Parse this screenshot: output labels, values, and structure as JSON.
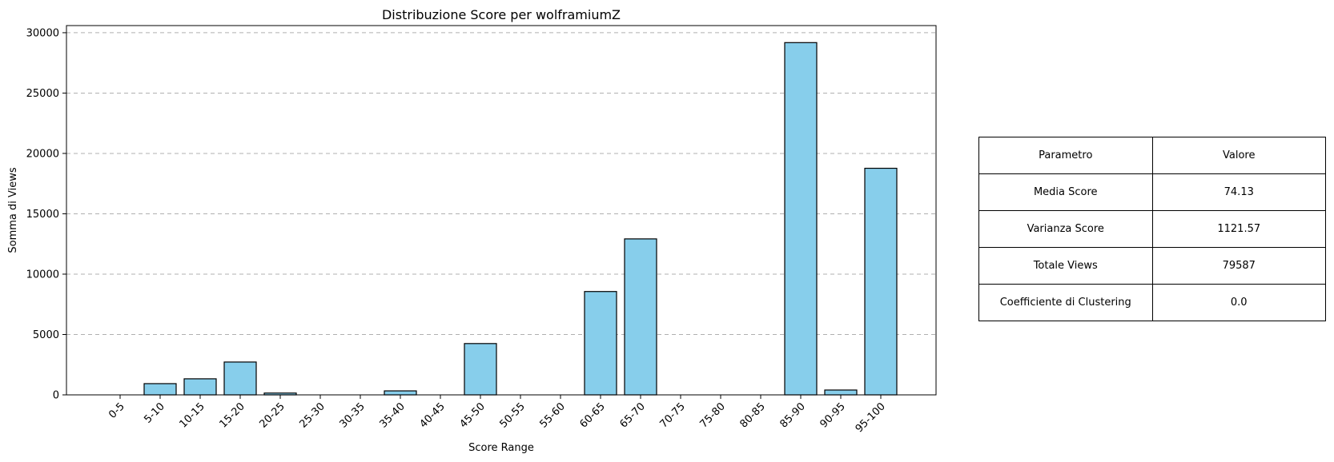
{
  "chart_data": {
    "type": "bar",
    "title": "Distribuzione Score per wolframiumZ",
    "xlabel": "Score Range",
    "ylabel": "Somma di Views",
    "categories": [
      "0-5",
      "5-10",
      "10-15",
      "15-20",
      "20-25",
      "25-30",
      "30-35",
      "35-40",
      "40-45",
      "45-50",
      "50-55",
      "55-60",
      "60-65",
      "65-70",
      "70-75",
      "75-80",
      "80-85",
      "85-90",
      "90-95",
      "95-100"
    ],
    "values": [
      0,
      930,
      1330,
      2720,
      150,
      0,
      0,
      330,
      0,
      4250,
      0,
      0,
      8560,
      12920,
      0,
      0,
      0,
      29180,
      400,
      18770
    ],
    "ylim": [
      0,
      30591
    ],
    "yticks": [
      0,
      5000,
      10000,
      15000,
      20000,
      25000,
      30000
    ],
    "grid": "y-dashed",
    "bar_color": "#87CEEB",
    "edge_color": "#000000"
  },
  "table": {
    "header": [
      "Parametro",
      "Valore"
    ],
    "rows": [
      [
        "Media Score",
        "74.13"
      ],
      [
        "Varianza Score",
        "1121.57"
      ],
      [
        "Totale Views",
        "79587"
      ],
      [
        "Coefficiente di Clustering",
        "0.0"
      ]
    ]
  }
}
